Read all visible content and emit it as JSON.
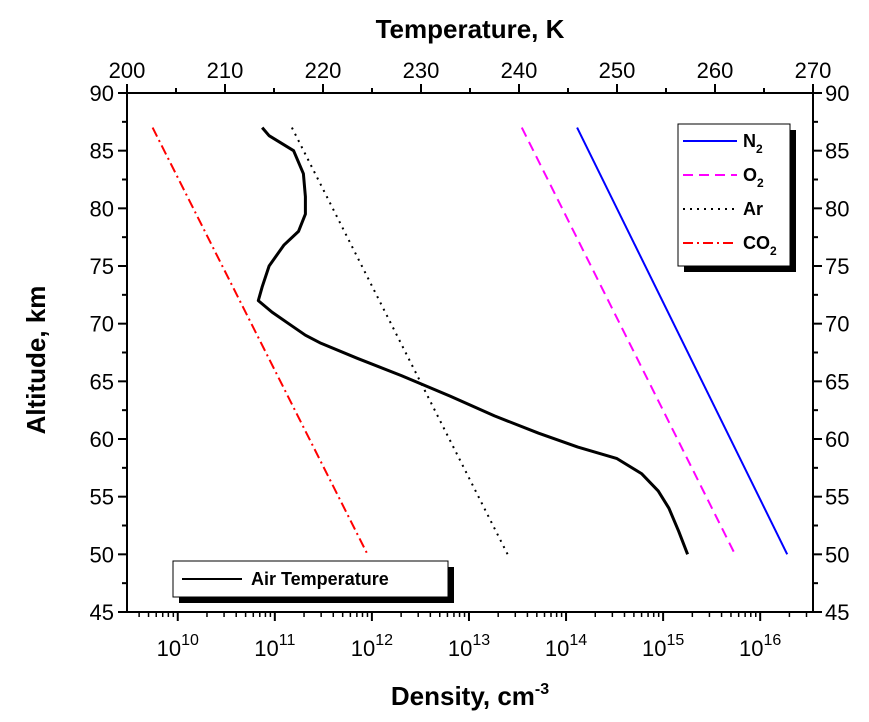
{
  "chart_data": {
    "type": "line",
    "title": "",
    "xlabel_bottom": "Density, cm",
    "xlabel_bottom_sup": "-3",
    "xlabel_top": "Temperature, K",
    "ylabel": "Altitude, km",
    "x_scale_bottom": "log",
    "xlim_bottom": [
      3000000000.0,
      3.5e+16
    ],
    "xlim_top": [
      200,
      270
    ],
    "ylim": [
      45,
      90
    ],
    "grid": false,
    "bottom_ticks": [
      {
        "base": "10",
        "exp": "10",
        "value": 10000000000.0
      },
      {
        "base": "10",
        "exp": "11",
        "value": 100000000000.0
      },
      {
        "base": "10",
        "exp": "12",
        "value": 1000000000000.0
      },
      {
        "base": "10",
        "exp": "13",
        "value": 10000000000000.0
      },
      {
        "base": "10",
        "exp": "14",
        "value": 100000000000000.0
      },
      {
        "base": "10",
        "exp": "15",
        "value": 1000000000000000.0
      },
      {
        "base": "10",
        "exp": "16",
        "value": 1e+16
      }
    ],
    "top_ticks": [
      "200",
      "210",
      "220",
      "230",
      "240",
      "250",
      "260",
      "270"
    ],
    "y_ticks": [
      "45",
      "50",
      "55",
      "60",
      "65",
      "70",
      "75",
      "80",
      "85",
      "90"
    ],
    "legend_density": {
      "placement": "top-right",
      "entries": [
        {
          "base": "N",
          "sub": "2",
          "color": "#0000ff",
          "dash": "solid"
        },
        {
          "base": "O",
          "sub": "2",
          "color": "#ff00ff",
          "dash": "dash"
        },
        {
          "base": "Ar",
          "sub": "",
          "color": "#000000",
          "dash": "dot"
        },
        {
          "base": "CO",
          "sub": "2",
          "color": "#ff0000",
          "dash": "dashdot"
        }
      ]
    },
    "legend_temperature": {
      "placement": "bottom-left",
      "entries": [
        {
          "base": "Air Temperature",
          "sub": "",
          "color": "#000000",
          "dash": "solid"
        }
      ]
    },
    "density_series": [
      {
        "name": "N2",
        "color": "#0000ff",
        "dash": "solid",
        "points": [
          {
            "x": 130000000000000.0,
            "y": 87
          },
          {
            "x": 1.9e+16,
            "y": 50
          }
        ]
      },
      {
        "name": "O2",
        "color": "#ff00ff",
        "dash": "dash",
        "points": [
          {
            "x": 35000000000000.0,
            "y": 87
          },
          {
            "x": 5500000000000000.0,
            "y": 50
          }
        ]
      },
      {
        "name": "Ar",
        "color": "#000000",
        "dash": "dot",
        "points": [
          {
            "x": 150000000000.0,
            "y": 87
          },
          {
            "x": 25000000000000.0,
            "y": 50
          }
        ]
      },
      {
        "name": "CO2",
        "color": "#ff0000",
        "dash": "dashdot",
        "points": [
          {
            "x": 5500000000.0,
            "y": 87
          },
          {
            "x": 900000000000.0,
            "y": 50
          }
        ]
      }
    ],
    "temperature_series": {
      "name": "Air Temperature",
      "color": "#000000",
      "dash": "solid",
      "points": [
        {
          "x": 257.2,
          "y": 50
        },
        {
          "x": 256.3,
          "y": 52
        },
        {
          "x": 255.3,
          "y": 54
        },
        {
          "x": 254.2,
          "y": 55.5
        },
        {
          "x": 252.5,
          "y": 57
        },
        {
          "x": 250.0,
          "y": 58.3
        },
        {
          "x": 246.0,
          "y": 59.3
        },
        {
          "x": 242.0,
          "y": 60.5
        },
        {
          "x": 237.5,
          "y": 62.0
        },
        {
          "x": 233.0,
          "y": 63.7
        },
        {
          "x": 228.0,
          "y": 65.5
        },
        {
          "x": 223.5,
          "y": 67.0
        },
        {
          "x": 219.8,
          "y": 68.3
        },
        {
          "x": 218.2,
          "y": 69.0
        },
        {
          "x": 216.5,
          "y": 70.0
        },
        {
          "x": 214.8,
          "y": 71.0
        },
        {
          "x": 213.4,
          "y": 72.0
        },
        {
          "x": 213.8,
          "y": 73.2
        },
        {
          "x": 214.5,
          "y": 75.0
        },
        {
          "x": 216.0,
          "y": 76.8
        },
        {
          "x": 217.5,
          "y": 78.0
        },
        {
          "x": 218.2,
          "y": 79.5
        },
        {
          "x": 218.2,
          "y": 81.0
        },
        {
          "x": 218.0,
          "y": 83.0
        },
        {
          "x": 217.0,
          "y": 85.0
        },
        {
          "x": 214.5,
          "y": 86.3
        },
        {
          "x": 213.8,
          "y": 87.0
        }
      ]
    }
  }
}
